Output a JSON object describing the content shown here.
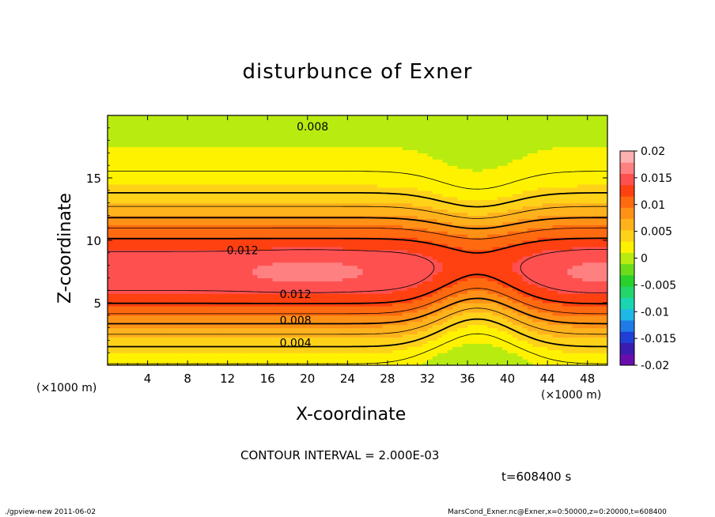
{
  "chart_data": {
    "type": "heatmap",
    "title": "disturbunce of Exner",
    "xlabel": "X-coordinate",
    "ylabel": "Z-coordinate",
    "x_unit_left": "(×1000 m)",
    "x_unit_right": "(×1000 m)",
    "xlim": [
      0,
      50
    ],
    "ylim": [
      0,
      20
    ],
    "x_ticks": [
      "4",
      "8",
      "12",
      "16",
      "20",
      "24",
      "28",
      "32",
      "36",
      "40",
      "44",
      "48"
    ],
    "x_tick_values": [
      4,
      8,
      12,
      16,
      20,
      24,
      28,
      32,
      36,
      40,
      44,
      48
    ],
    "y_ticks": [
      "5",
      "10",
      "15"
    ],
    "y_tick_values": [
      5,
      10,
      15
    ],
    "colorbar_labels": [
      "0.02",
      "0.015",
      "0.01",
      "0.005",
      "0",
      "-0.005",
      "-0.01",
      "-0.015",
      "-0.02"
    ],
    "colorbar_values": [
      0.02,
      0.015,
      0.01,
      0.005,
      0,
      -0.005,
      -0.01,
      -0.015,
      -0.02
    ],
    "color_scale": [
      "#6a0dad",
      "#3a1cb0",
      "#1f3fd6",
      "#1e7be8",
      "#1fb8e6",
      "#1ad6b0",
      "#22d66b",
      "#28d22b",
      "#6cdc1a",
      "#b8ec10",
      "#fff200",
      "#ffd21a",
      "#ffb21c",
      "#ff9216",
      "#ff6a10",
      "#ff4010",
      "#ff5050",
      "#ff8080",
      "#ffb0b0"
    ],
    "contour_labels": [
      {
        "text": "0.008",
        "x": 20.5,
        "z": 19.1
      },
      {
        "text": "0.012",
        "x": 13.5,
        "z": 9.2
      },
      {
        "text": "0.012",
        "x": 18.8,
        "z": 5.7
      },
      {
        "text": "0.008",
        "x": 18.8,
        "z": 3.6
      },
      {
        "text": "0.004",
        "x": 18.8,
        "z": 1.8
      }
    ],
    "contour_interval": "CONTOUR INTERVAL = 2.000E-03",
    "time": "t=608400 s"
  },
  "footer": {
    "left": "./gpview-new  2011-06-02",
    "right": "MarsCond_Exner.nc@Exner,x=0:50000,z=0:20000,t=608400"
  }
}
